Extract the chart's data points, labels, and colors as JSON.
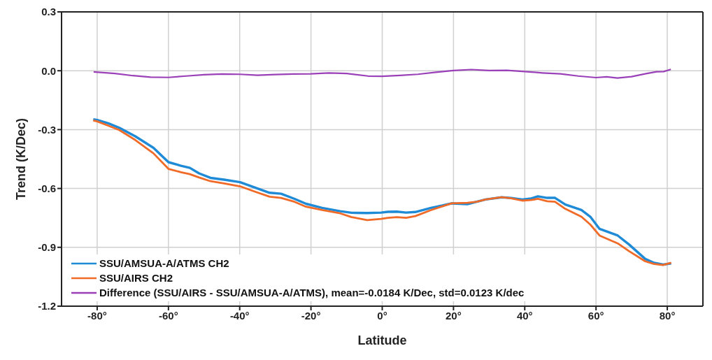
{
  "chart_data": {
    "type": "line",
    "xlabel": "Latitude",
    "ylabel": "Trend (K/Dec)",
    "xlim": [
      -90,
      90
    ],
    "xticks": [
      {
        "value": -80,
        "label": "-80°"
      },
      {
        "value": -60,
        "label": "-60°"
      },
      {
        "value": -40,
        "label": "-40°"
      },
      {
        "value": -20,
        "label": "-20°"
      },
      {
        "value": 0,
        "label": "0°"
      },
      {
        "value": 20,
        "label": "20°"
      },
      {
        "value": 40,
        "label": "40°"
      },
      {
        "value": 60,
        "label": "60°"
      },
      {
        "value": 80,
        "label": "80°"
      }
    ],
    "ylim": [
      -1.2,
      0.3
    ],
    "yticks": [
      -1.2,
      -0.9,
      -0.6,
      -0.3,
      {
        "value": 0,
        "label": "0.0"
      },
      0.3
    ],
    "grid": true,
    "legend": "bottom left",
    "marker": "none",
    "line_style": "solid",
    "series": [
      {
        "name": "SSU/AMSUA-A/ATMS CH2",
        "color": "#1f8ad6",
        "x": [
          -81.1,
          -80,
          -76.9,
          -73.8,
          -69.3,
          -64.2,
          -60,
          -56.5,
          -54,
          -51.4,
          -48.2,
          -44.4,
          -39.9,
          -36.1,
          -31.6,
          -28.4,
          -24.6,
          -21.4,
          -16.9,
          -11.8,
          -8.6,
          -4.2,
          -0.3,
          1.6,
          4.1,
          6.7,
          9.3,
          13.7,
          16.9,
          19.5,
          23.9,
          26.5,
          29,
          33.5,
          36.1,
          39.3,
          41.8,
          43.7,
          46.3,
          48.5,
          51.4,
          55.9,
          58.4,
          61,
          66.1,
          69.3,
          73.8,
          76.3,
          78.8,
          81.1
        ],
        "values": [
          -0.248,
          -0.251,
          -0.268,
          -0.291,
          -0.334,
          -0.393,
          -0.466,
          -0.484,
          -0.495,
          -0.523,
          -0.546,
          -0.555,
          -0.568,
          -0.593,
          -0.622,
          -0.627,
          -0.653,
          -0.678,
          -0.699,
          -0.716,
          -0.724,
          -0.725,
          -0.723,
          -0.719,
          -0.718,
          -0.723,
          -0.72,
          -0.699,
          -0.687,
          -0.676,
          -0.68,
          -0.668,
          -0.656,
          -0.645,
          -0.648,
          -0.656,
          -0.651,
          -0.64,
          -0.648,
          -0.648,
          -0.682,
          -0.71,
          -0.744,
          -0.806,
          -0.84,
          -0.886,
          -0.959,
          -0.979,
          -0.988,
          -0.982
        ]
      },
      {
        "name": "SSU/AIRS CH2",
        "color": "#f06a28",
        "x": [
          -81.1,
          -80,
          -76.9,
          -73.8,
          -69.3,
          -64.2,
          -60,
          -56.5,
          -54,
          -51.4,
          -48.2,
          -44.4,
          -39.9,
          -36.1,
          -31.6,
          -28.4,
          -24.6,
          -21.4,
          -16.9,
          -11.8,
          -8.6,
          -4.2,
          -0.3,
          1.6,
          4.1,
          6.7,
          9.3,
          13.7,
          16.9,
          19.5,
          23.9,
          26.5,
          29,
          33.5,
          36.1,
          39.3,
          41.8,
          43.7,
          46.3,
          48.5,
          51.4,
          55.9,
          58.4,
          61,
          66.1,
          69.3,
          73.8,
          76.3,
          78.8,
          81.1
        ],
        "values": [
          -0.254,
          -0.258,
          -0.28,
          -0.302,
          -0.353,
          -0.421,
          -0.5,
          -0.517,
          -0.527,
          -0.544,
          -0.563,
          -0.574,
          -0.589,
          -0.614,
          -0.642,
          -0.648,
          -0.668,
          -0.693,
          -0.71,
          -0.727,
          -0.746,
          -0.761,
          -0.755,
          -0.75,
          -0.746,
          -0.75,
          -0.741,
          -0.71,
          -0.691,
          -0.676,
          -0.673,
          -0.668,
          -0.656,
          -0.645,
          -0.65,
          -0.662,
          -0.659,
          -0.653,
          -0.665,
          -0.668,
          -0.704,
          -0.744,
          -0.784,
          -0.84,
          -0.88,
          -0.92,
          -0.971,
          -0.985,
          -0.99,
          -0.979
        ]
      },
      {
        "name": "Difference (SSU/AIRS - SSU/AMSUA-A/ATMS), mean=-0.0184 K/Dec, std=0.0123 K/dec",
        "color": "#9a40b8",
        "x": [
          -81,
          -75,
          -70,
          -65,
          -60,
          -55,
          -50,
          -45,
          -40,
          -35,
          -30,
          -25,
          -20,
          -15,
          -10,
          -4,
          0,
          5,
          10,
          15,
          20,
          25,
          30,
          35,
          40,
          45,
          50,
          55,
          60,
          63,
          66,
          70,
          74,
          77,
          79,
          81
        ],
        "values": [
          -0.006,
          -0.014,
          -0.025,
          -0.033,
          -0.034,
          -0.027,
          -0.02,
          -0.017,
          -0.018,
          -0.023,
          -0.019,
          -0.017,
          -0.016,
          -0.011,
          -0.014,
          -0.027,
          -0.028,
          -0.024,
          -0.018,
          -0.008,
          0.001,
          0.006,
          0.001,
          0.002,
          -0.004,
          -0.011,
          -0.016,
          -0.027,
          -0.035,
          -0.031,
          -0.037,
          -0.03,
          -0.015,
          -0.005,
          -0.004,
          0.007
        ]
      }
    ]
  }
}
